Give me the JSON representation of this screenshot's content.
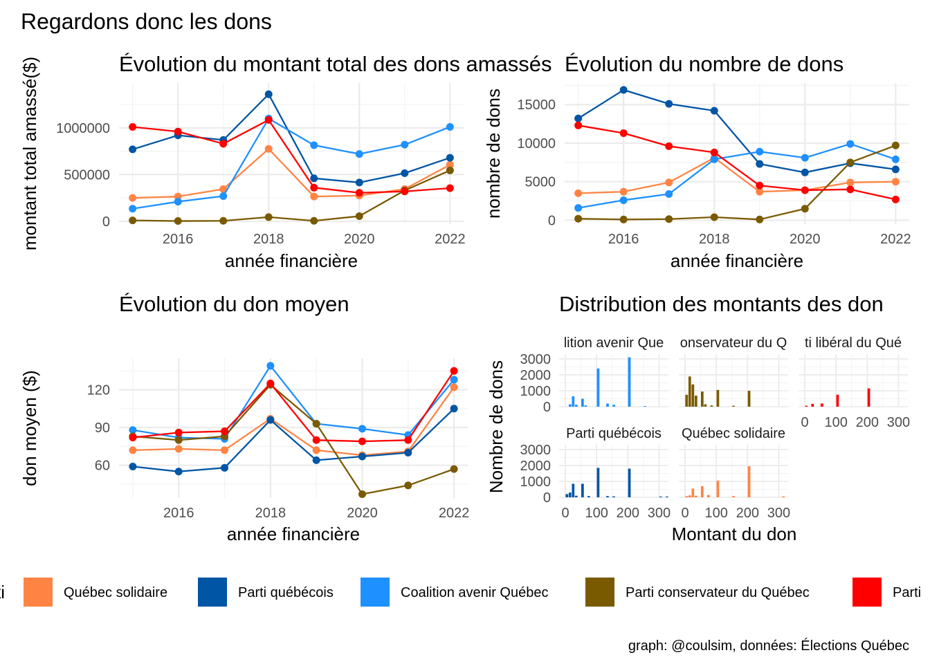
{
  "title": "Regardons donc les dons",
  "caption": "graph: @coulsim, données: Élections Québec",
  "colors": {
    "Québec solidaire": "#FF8444",
    "Parti québécois": "#0055A4",
    "Coalition avenir Québec": "#1E90FF",
    "Parti conservateur du Québec": "#7A5A00",
    "Parti libéral du Québec": "#FF0000"
  },
  "legend": {
    "title": "ti",
    "items": [
      "Québec solidaire",
      "Parti québécois",
      "Coalition avenir Québec",
      "Parti conservateur du Québec",
      "Parti"
    ]
  },
  "chart_data": [
    {
      "type": "line",
      "title": "Évolution du montant total des dons amassés",
      "xlabel": "année financière",
      "ylabel": "montant total amassé($)",
      "xlim": [
        2014.7,
        2022.3
      ],
      "ylim": [
        -30000,
        1480000
      ],
      "xticks": [
        2016,
        2018,
        2020,
        2022
      ],
      "yticks": [
        0,
        500000,
        1000000
      ],
      "ytick_labels": [
        "0",
        "500000",
        "1000000"
      ],
      "x": [
        2015,
        2016,
        2017,
        2018,
        2019,
        2020,
        2021,
        2022
      ],
      "series": [
        {
          "name": "Québec solidaire",
          "values": [
            250000,
            265000,
            345000,
            775000,
            265000,
            275000,
            345000,
            605000
          ]
        },
        {
          "name": "Parti québécois",
          "values": [
            770000,
            920000,
            870000,
            1360000,
            460000,
            415000,
            515000,
            680000
          ]
        },
        {
          "name": "Coalition avenir Québec",
          "values": [
            135000,
            210000,
            270000,
            1100000,
            815000,
            720000,
            820000,
            1010000
          ]
        },
        {
          "name": "Parti conservateur du Québec",
          "values": [
            10000,
            3000,
            5000,
            45000,
            5000,
            55000,
            330000,
            545000
          ]
        },
        {
          "name": "Parti libéral du Québec",
          "values": [
            1010000,
            960000,
            830000,
            1085000,
            360000,
            305000,
            320000,
            355000
          ]
        }
      ]
    },
    {
      "type": "line",
      "title": "Évolution du nombre de dons",
      "xlabel": "année financière",
      "ylabel": "nombre de dons",
      "xlim": [
        2014.7,
        2022.3
      ],
      "ylim": [
        -500,
        17800
      ],
      "xticks": [
        2016,
        2018,
        2020,
        2022
      ],
      "yticks": [
        0,
        5000,
        10000,
        15000
      ],
      "ytick_labels": [
        "0",
        "5000",
        "10000",
        "15000"
      ],
      "x": [
        2015,
        2016,
        2017,
        2018,
        2019,
        2020,
        2021,
        2022
      ],
      "series": [
        {
          "name": "Québec solidaire",
          "values": [
            3500,
            3700,
            4900,
            8100,
            3700,
            3900,
            4900,
            5000
          ]
        },
        {
          "name": "Parti québécois",
          "values": [
            13200,
            16900,
            15100,
            14200,
            7300,
            6200,
            7400,
            6600
          ]
        },
        {
          "name": "Coalition avenir Québec",
          "values": [
            1600,
            2600,
            3400,
            7900,
            8900,
            8100,
            9900,
            7900
          ]
        },
        {
          "name": "Parti conservateur du Québec",
          "values": [
            200,
            100,
            150,
            400,
            100,
            1500,
            7500,
            9700
          ]
        },
        {
          "name": "Parti libéral du Québec",
          "values": [
            12300,
            11300,
            9600,
            8800,
            4500,
            3900,
            4000,
            2700
          ]
        }
      ]
    },
    {
      "type": "line",
      "title": "Évolution du don moyen",
      "xlabel": "année financière",
      "ylabel": "don moyen ($)",
      "xlim": [
        2014.7,
        2022.3
      ],
      "ylim": [
        34,
        145
      ],
      "xticks": [
        2016,
        2018,
        2020,
        2022
      ],
      "yticks": [
        60,
        90,
        120
      ],
      "ytick_labels": [
        "60",
        "90",
        "120"
      ],
      "x": [
        2015,
        2016,
        2017,
        2018,
        2019,
        2020,
        2021,
        2022
      ],
      "series": [
        {
          "name": "Québec solidaire",
          "values": [
            72,
            73,
            72,
            97,
            72,
            68,
            71,
            122
          ]
        },
        {
          "name": "Parti québécois",
          "values": [
            59,
            55,
            58,
            96,
            64,
            67,
            70,
            105
          ]
        },
        {
          "name": "Coalition avenir Québec",
          "values": [
            88,
            82,
            81,
            139,
            93,
            89,
            84,
            128
          ]
        },
        {
          "name": "Parti conservateur du Québec",
          "values": [
            83,
            80,
            83,
            124,
            93,
            37,
            44,
            57
          ]
        },
        {
          "name": "Parti libéral du Québec",
          "values": [
            82,
            86,
            87,
            125,
            80,
            79,
            80,
            135
          ]
        }
      ]
    },
    {
      "type": "bar",
      "title": "Distribution des montants des don",
      "xlabel": "Montant du don",
      "ylabel": "Nombre de dons",
      "xlim": [
        -20,
        330
      ],
      "ylim": [
        0,
        3300
      ],
      "xticks": [
        0,
        100,
        200,
        300
      ],
      "yticks": [
        0,
        1000,
        2000,
        3000
      ],
      "bin_width": 10,
      "facets": [
        {
          "label": "lition avenir Que",
          "party": "Coalition avenir Québec",
          "bins": [
            [
              10,
              150
            ],
            [
              20,
              650
            ],
            [
              30,
              120
            ],
            [
              50,
              500
            ],
            [
              60,
              80
            ],
            [
              100,
              2400
            ],
            [
              130,
              200
            ],
            [
              150,
              120
            ],
            [
              200,
              3100
            ],
            [
              250,
              40
            ]
          ]
        },
        {
          "label": "onservateur du Q",
          "party": "Parti conservateur du Québec",
          "bins": [
            [
              0,
              750
            ],
            [
              10,
              1900
            ],
            [
              20,
              1400
            ],
            [
              30,
              700
            ],
            [
              50,
              950
            ],
            [
              60,
              150
            ],
            [
              80,
              80
            ],
            [
              100,
              1050
            ],
            [
              150,
              60
            ],
            [
              200,
              1000
            ]
          ]
        },
        {
          "label": "ti libéral du Qué",
          "party": "Parti libéral du Québec",
          "bins": [
            [
              0,
              60
            ],
            [
              20,
              180
            ],
            [
              50,
              200
            ],
            [
              100,
              750
            ],
            [
              200,
              1150
            ]
          ]
        },
        {
          "label": "Parti québécois",
          "party": "Parti québécois",
          "bins": [
            [
              0,
              200
            ],
            [
              10,
              300
            ],
            [
              20,
              850
            ],
            [
              30,
              100
            ],
            [
              50,
              850
            ],
            [
              70,
              80
            ],
            [
              100,
              1850
            ],
            [
              130,
              80
            ],
            [
              150,
              60
            ],
            [
              200,
              1800
            ],
            [
              300,
              50
            ],
            [
              320,
              50
            ]
          ]
        },
        {
          "label": "Québec solidaire",
          "party": "Québec solidaire",
          "bins": [
            [
              0,
              80
            ],
            [
              10,
              120
            ],
            [
              20,
              550
            ],
            [
              30,
              100
            ],
            [
              50,
              700
            ],
            [
              70,
              150
            ],
            [
              100,
              1050
            ],
            [
              150,
              80
            ],
            [
              200,
              1950
            ],
            [
              310,
              60
            ]
          ]
        }
      ]
    }
  ]
}
